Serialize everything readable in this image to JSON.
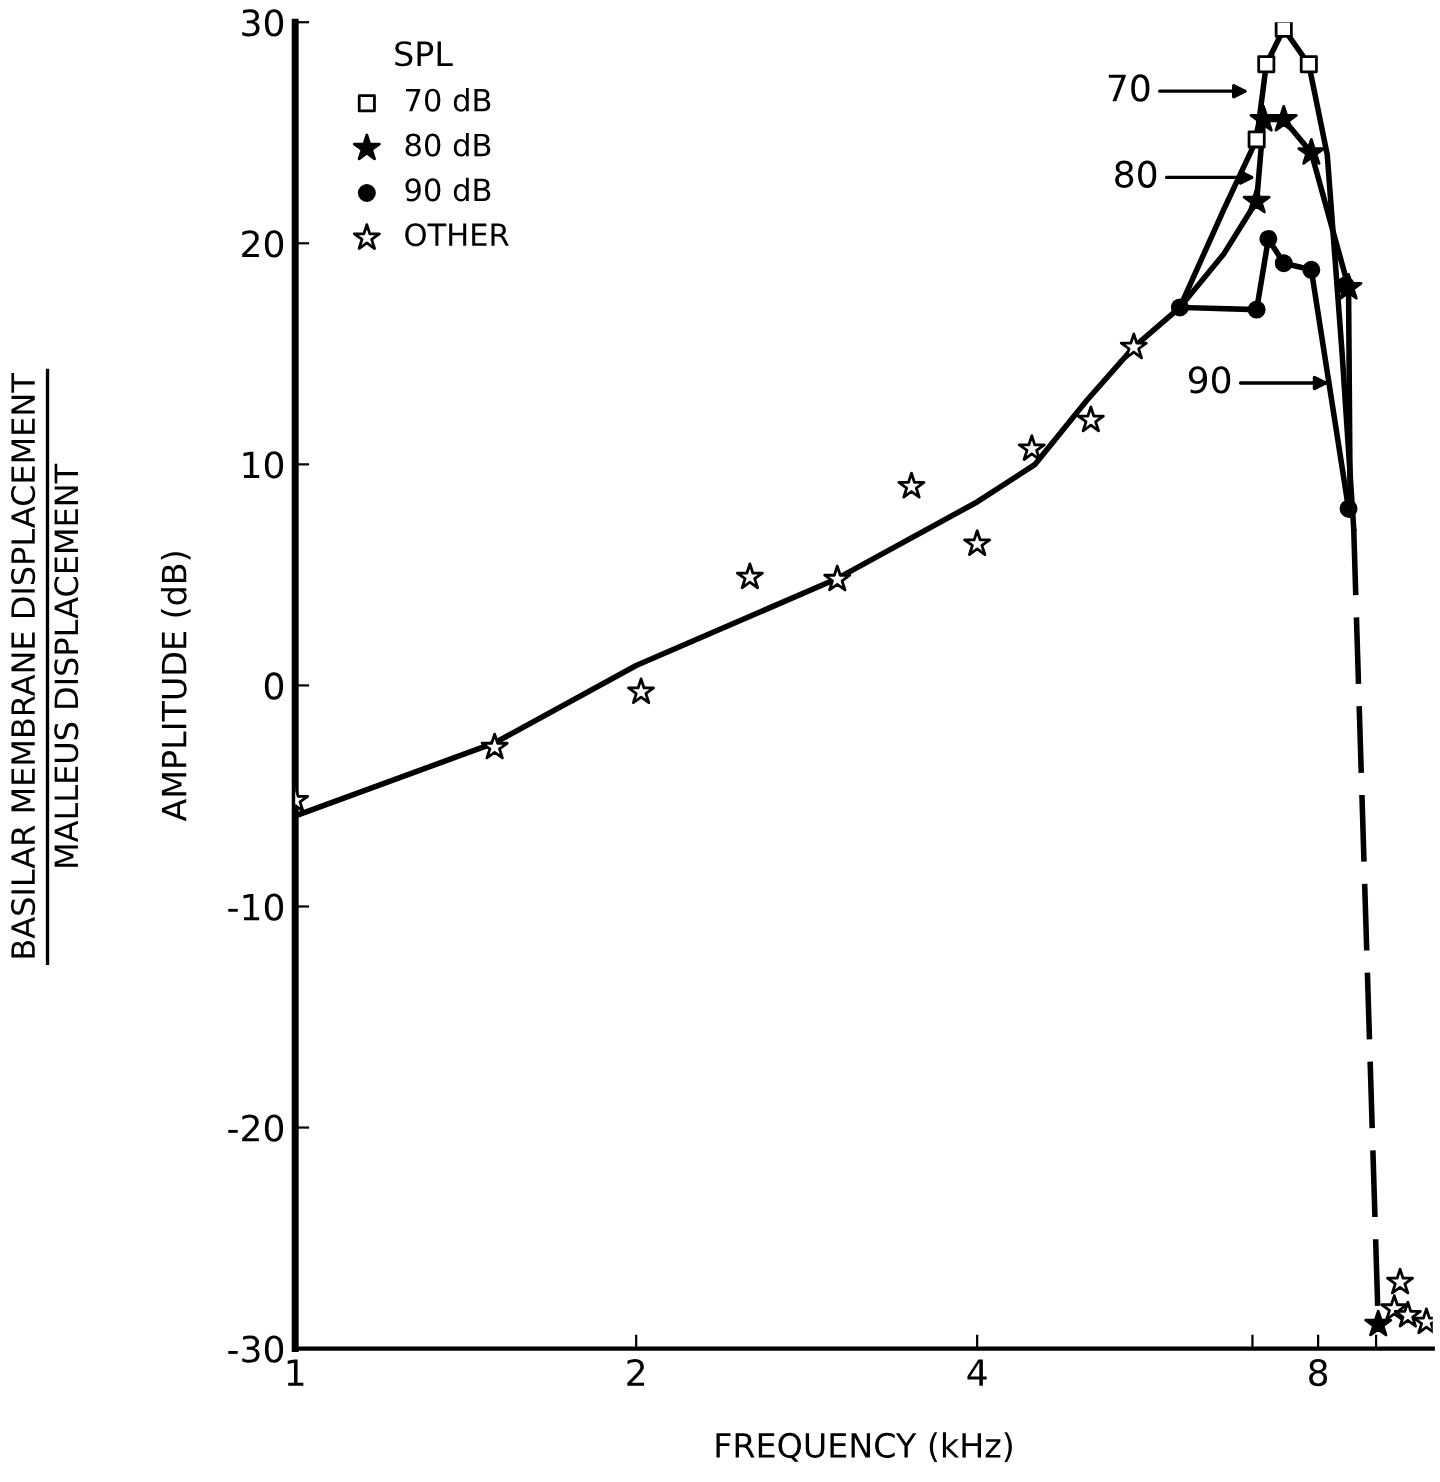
{
  "chart_data": {
    "type": "line",
    "xlabel": "FREQUENCY (kHz)",
    "ylabel": "AMPLITUDE (dB)",
    "log": "x",
    "xlim": [
      1,
      10.1
    ],
    "xticks": [
      1,
      2,
      4,
      8,
      {
        "value": 7,
        "label": null
      },
      {
        "value": 9,
        "label": null
      }
    ],
    "ylim": [
      -30,
      30
    ],
    "yticks": [
      -30,
      -20,
      -10,
      0,
      10,
      20,
      30
    ],
    "grid": false,
    "legend": "top left",
    "legend_title": "SPL",
    "annotations": [
      "70",
      "80",
      "90",
      "BASILAR MEMBRANE DISPLACEMENT",
      "MALLEUS DISPLACEMENT"
    ],
    "series": [
      {
        "type": "line",
        "color": "#000000",
        "marker": "none",
        "line_style": "solid",
        "x": [
          1,
          1.5,
          2,
          3,
          4,
          4.5,
          5,
          5.5,
          6.04
        ],
        "values": [
          -5.9,
          -2.6,
          0.9,
          4.8,
          8.3,
          10.0,
          12.9,
          15.3,
          17.1
        ]
      },
      {
        "type": "line",
        "color": "#000000",
        "marker": "none",
        "line_style": "solid",
        "x": [
          6.04,
          6.6,
          7.06,
          7.2,
          7.46,
          7.85,
          8.15,
          8.4,
          8.6
        ],
        "values": [
          17.1,
          21.5,
          24.7,
          28.1,
          29.7,
          28.1,
          24,
          15,
          7.1
        ]
      },
      {
        "type": "line",
        "color": "#000000",
        "marker": "none",
        "line_style": "solid",
        "x": [
          6.04,
          6.6,
          7.06,
          7.16,
          7.46,
          7.89,
          8.51,
          8.54
        ],
        "values": [
          17.1,
          19.5,
          21.9,
          25.6,
          25.6,
          24.1,
          18.0,
          7.7
        ]
      },
      {
        "type": "line",
        "color": "#000000",
        "marker": "none",
        "line_style": "solid",
        "x": [
          6.04,
          7.06,
          7.23,
          7.46,
          7.89,
          8.51
        ],
        "values": [
          17.1,
          17.0,
          20.2,
          19.1,
          18.8,
          8.0
        ]
      },
      {
        "type": "line",
        "color": "#000000",
        "marker": "none",
        "line_style": "dashed",
        "x": [
          8.6,
          9.04
        ],
        "values": [
          7.1,
          -28.9
        ]
      },
      {
        "type": "scatter",
        "name": "70 dB",
        "color": "#ffffff",
        "marker": "square",
        "x": [
          7.06,
          7.2,
          7.46,
          7.85
        ],
        "values": [
          24.7,
          28.1,
          29.7,
          28.1
        ]
      },
      {
        "type": "scatter",
        "name": "80 dB",
        "color": "#000000",
        "marker": "star",
        "x": [
          7.06,
          7.16,
          7.46,
          7.89,
          8.51,
          9.04
        ],
        "values": [
          21.9,
          25.6,
          25.6,
          24.1,
          18.0,
          -28.9
        ]
      },
      {
        "type": "scatter",
        "name": "90 dB",
        "color": "#000000",
        "marker": "circle",
        "x": [
          6.04,
          7.06,
          7.23,
          7.46,
          7.89,
          8.46,
          8.51
        ],
        "values": [
          17.1,
          17.0,
          20.2,
          19.1,
          18.8,
          18.1,
          8.0
        ]
      },
      {
        "type": "scatter",
        "name": "OTHER",
        "color": "#ffffff",
        "marker": "star",
        "x": [
          1.0,
          1.5,
          2.02,
          2.52,
          3.01,
          3.5,
          4.0,
          4.47,
          5.04,
          5.5,
          9.34,
          9.45,
          9.6,
          9.97
        ],
        "values": [
          -5.2,
          -2.8,
          -0.3,
          4.9,
          4.8,
          9.0,
          6.4,
          10.7,
          12.0,
          15.3,
          -28.2,
          -27.0,
          -28.5,
          -28.8
        ]
      }
    ]
  }
}
